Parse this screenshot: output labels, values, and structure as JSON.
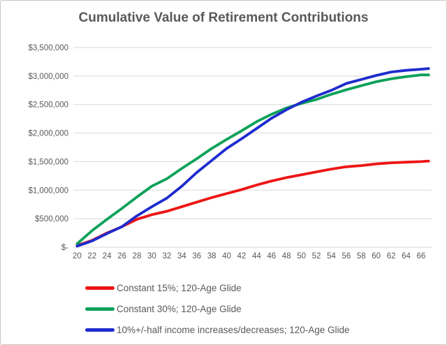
{
  "chart_data": {
    "type": "line",
    "title": "Cumulative Value of Retirement Contributions",
    "xlabel": "",
    "ylabel": "",
    "x": [
      20,
      22,
      24,
      26,
      28,
      30,
      32,
      34,
      36,
      38,
      40,
      42,
      44,
      46,
      48,
      50,
      52,
      54,
      56,
      58,
      60,
      62,
      64,
      66,
      67
    ],
    "x_tick_labels": [
      "20",
      "22",
      "24",
      "26",
      "28",
      "30",
      "32",
      "34",
      "36",
      "38",
      "40",
      "42",
      "44",
      "46",
      "48",
      "50",
      "52",
      "54",
      "56",
      "58",
      "60",
      "62",
      "64",
      "66"
    ],
    "y_ticks": [
      0,
      500000,
      1000000,
      1500000,
      2000000,
      2500000,
      3000000,
      3500000
    ],
    "y_tick_labels": [
      "$-",
      "$500,000",
      "$1,000,000",
      "$1,500,000",
      "$2,000,000",
      "$2,500,000",
      "$3,000,000",
      "$3,500,000"
    ],
    "ylim": [
      0,
      3500000
    ],
    "xlim": [
      20,
      67
    ],
    "grid": true,
    "gridline_color": "#d9d9d9",
    "axis_text_color": "#595959",
    "legend_position": "bottom-left",
    "series": [
      {
        "name": "Constant 15%; 120-Age Glide",
        "color": "#ed1515",
        "values": [
          30000,
          120000,
          250000,
          360000,
          490000,
          570000,
          630000,
          710000,
          790000,
          870000,
          940000,
          1010000,
          1090000,
          1160000,
          1220000,
          1270000,
          1320000,
          1370000,
          1410000,
          1430000,
          1460000,
          1480000,
          1490000,
          1500000,
          1510000
        ]
      },
      {
        "name": "Constant 30%; 120-Age Glide",
        "color": "#0ca159",
        "values": [
          60000,
          290000,
          490000,
          680000,
          880000,
          1070000,
          1200000,
          1380000,
          1550000,
          1730000,
          1890000,
          2040000,
          2200000,
          2330000,
          2440000,
          2520000,
          2590000,
          2680000,
          2760000,
          2830000,
          2900000,
          2950000,
          2990000,
          3020000,
          3020000
        ]
      },
      {
        "name": "10%+/-half income increases/decreases; 120-Age Glide",
        "color": "#1e2ccd",
        "values": [
          20000,
          110000,
          240000,
          360000,
          550000,
          710000,
          860000,
          1070000,
          1310000,
          1520000,
          1730000,
          1900000,
          2080000,
          2260000,
          2410000,
          2540000,
          2650000,
          2750000,
          2870000,
          2940000,
          3010000,
          3070000,
          3100000,
          3120000,
          3130000
        ]
      }
    ]
  }
}
